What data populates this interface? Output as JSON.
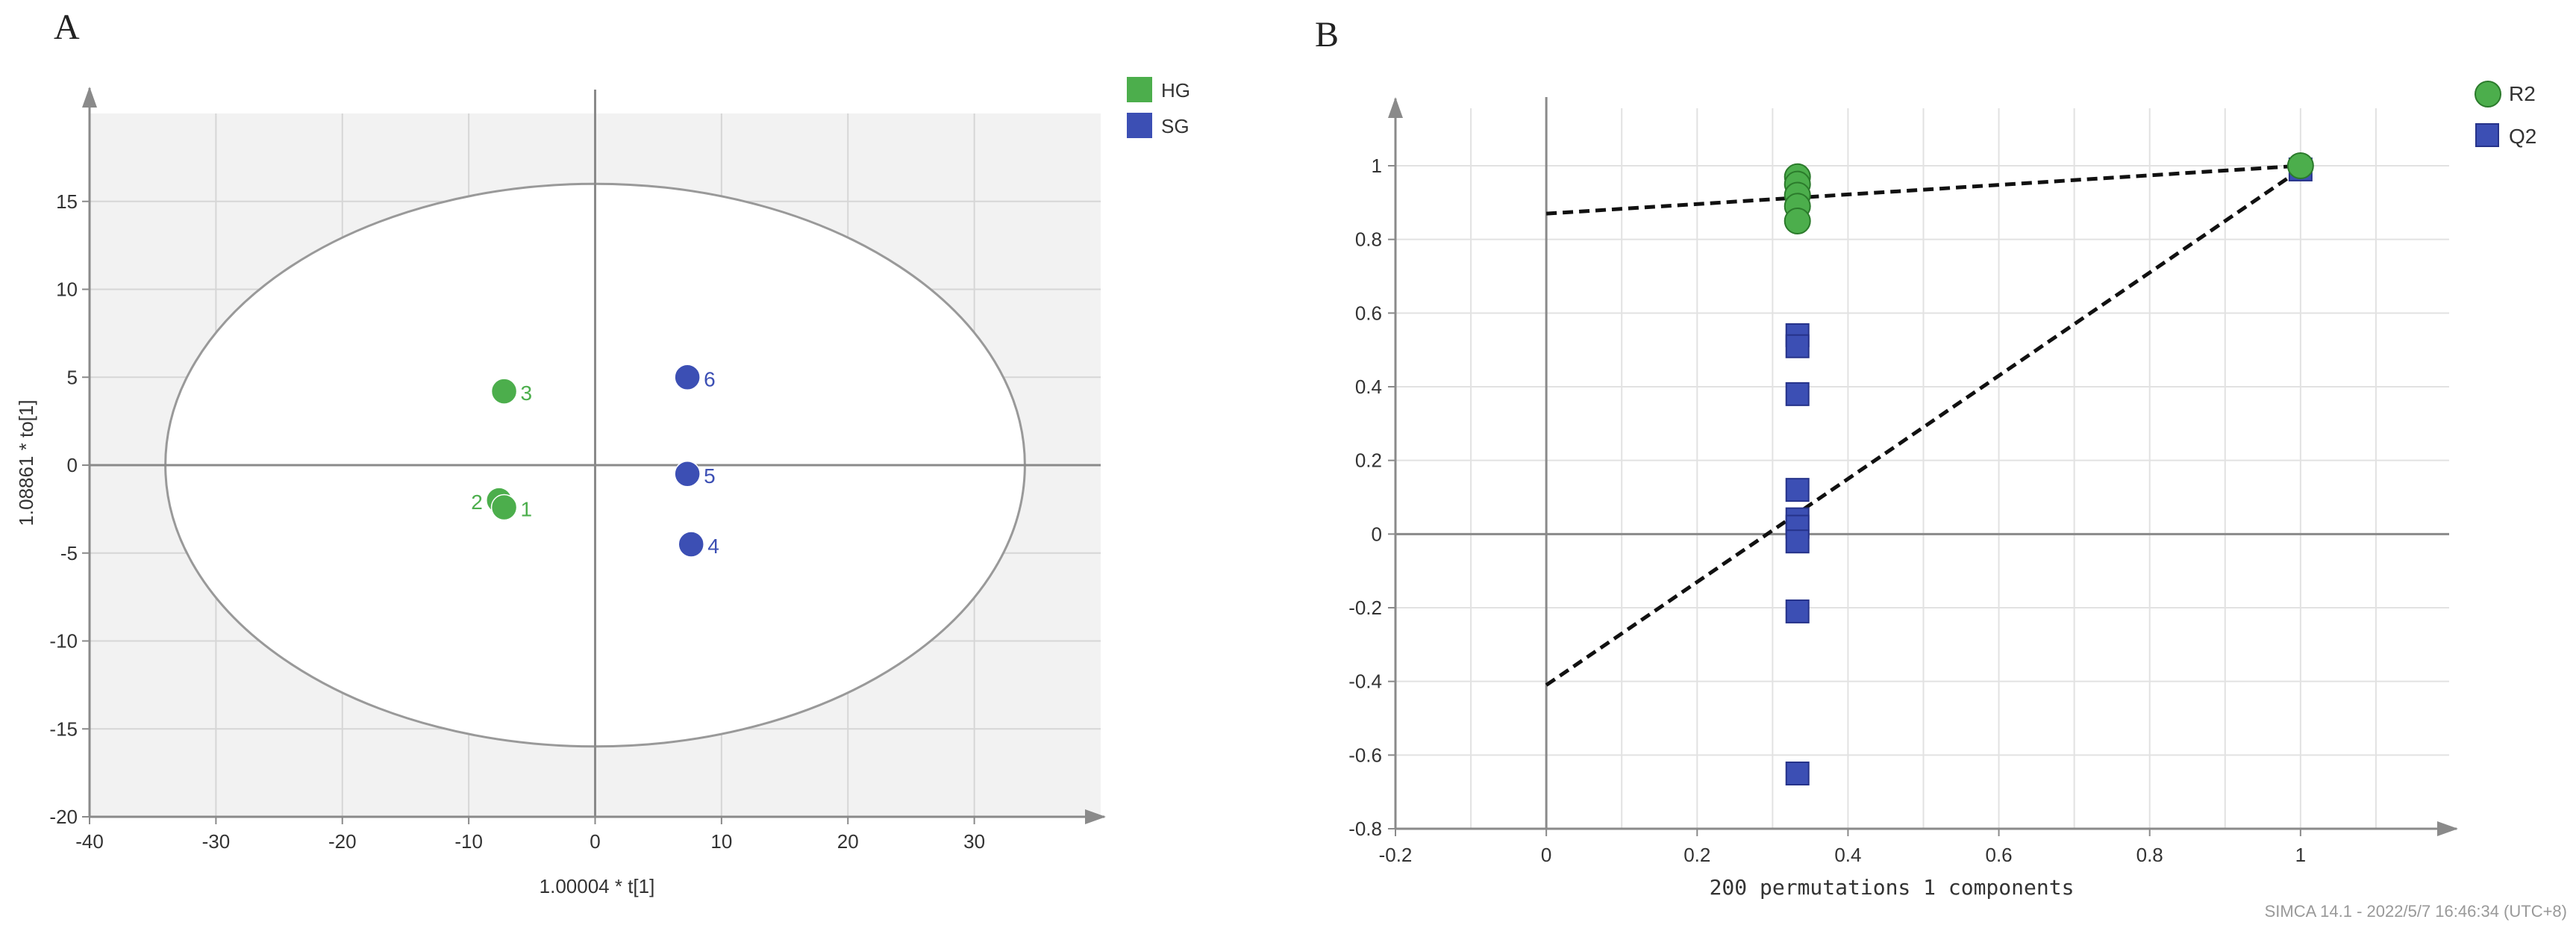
{
  "panels": {
    "a": {
      "label": "A"
    },
    "b": {
      "label": "B"
    }
  },
  "footer": {
    "text": "SIMCA 14.1 - 2022/5/7 16:46:34 (UTC+8)"
  },
  "colors": {
    "green": "#4cae4c",
    "blue": "#3c4fb4",
    "plot_bg": "#f2f2f2",
    "grid": "#d8d8d8",
    "axis": "#8a8a8a"
  },
  "chart_data": [
    {
      "type": "scatter",
      "title": "",
      "xlabel": "1.00004 * t[1]",
      "ylabel": "1.08861 * to[1]",
      "xlim": [
        -40,
        40
      ],
      "ylim": [
        -20,
        20
      ],
      "xticks": [
        "-40",
        "-30",
        "-20",
        "-10",
        "0",
        "10",
        "20",
        "30"
      ],
      "yticks": [
        "-20",
        "-15",
        "-10",
        "-5",
        "0",
        "5",
        "10",
        "15"
      ],
      "grid": true,
      "ellipse": {
        "a": 34,
        "b": 16
      },
      "legend_position": "top-right",
      "series": [
        {
          "name": "HG",
          "color": "#4cae4c",
          "marker": "circle",
          "points": [
            {
              "x": -7.2,
              "y": 4.2,
              "label": "3"
            },
            {
              "x": -7.6,
              "y": -2.0,
              "label": "2"
            },
            {
              "x": -7.2,
              "y": -2.4,
              "label": "1"
            }
          ]
        },
        {
          "name": "SG",
          "color": "#3c4fb4",
          "marker": "circle",
          "points": [
            {
              "x": 7.3,
              "y": 5.0,
              "label": "6"
            },
            {
              "x": 7.3,
              "y": -0.5,
              "label": "5"
            },
            {
              "x": 7.6,
              "y": -4.5,
              "label": "4"
            }
          ]
        }
      ]
    },
    {
      "type": "scatter",
      "title": "",
      "xlabel": "200 permutations 1 components",
      "ylabel": "",
      "xlim": [
        -0.2,
        1.2
      ],
      "ylim": [
        -0.8,
        1.0
      ],
      "xticks": [
        "-0.2",
        "0",
        "0.2",
        "0.4",
        "0.6",
        "0.8",
        "1"
      ],
      "yticks": [
        "-0.8",
        "-0.6",
        "-0.4",
        "-0.2",
        "0",
        "0.2",
        "0.4",
        "0.6",
        "0.8",
        "1"
      ],
      "grid": true,
      "legend_position": "top-right",
      "series": [
        {
          "name": "R2",
          "color": "#4cae4c",
          "marker": "circle",
          "x": [
            0.333,
            0.333,
            0.333,
            0.333,
            0.333,
            1.0
          ],
          "y": [
            0.97,
            0.95,
            0.92,
            0.89,
            0.85,
            1.0
          ]
        },
        {
          "name": "Q2",
          "color": "#3c4fb4",
          "marker": "square",
          "x": [
            0.333,
            0.333,
            0.333,
            0.333,
            0.333,
            0.333,
            0.333,
            0.333,
            0.333,
            1.0
          ],
          "y": [
            0.54,
            0.51,
            0.38,
            0.12,
            0.04,
            0.02,
            -0.02,
            -0.21,
            -0.65,
            0.99
          ]
        }
      ],
      "regression_lines": [
        {
          "name": "R2",
          "from": [
            0,
            0.87
          ],
          "to": [
            1,
            1.0
          ]
        },
        {
          "name": "Q2",
          "from": [
            0,
            -0.41
          ],
          "to": [
            1,
            0.99
          ]
        }
      ]
    }
  ]
}
